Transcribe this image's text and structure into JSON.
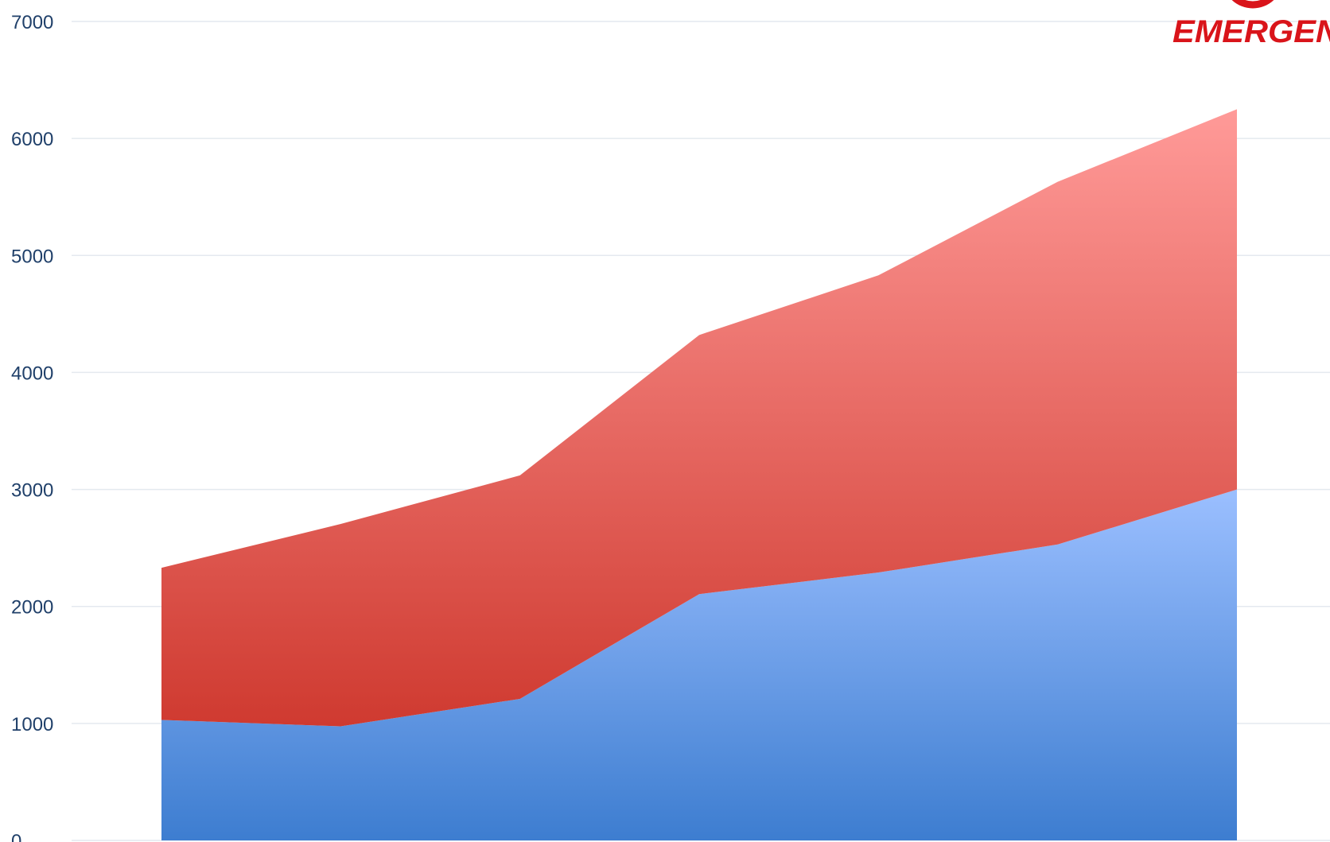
{
  "chart_data": {
    "type": "area",
    "stacked": true,
    "title": "",
    "xlabel": "",
    "ylabel": "",
    "ylim": [
      0,
      7000
    ],
    "yticks": [
      0,
      1000,
      2000,
      3000,
      4000,
      5000,
      6000,
      7000
    ],
    "grid": true,
    "x": [
      1,
      2,
      3,
      4,
      5,
      6,
      7
    ],
    "series": [
      {
        "values": [
          1030,
          975,
          1210,
          2105,
          2290,
          2530,
          3000
        ],
        "color_top": "#9bbfff",
        "color_bottom": "#3d7dd0"
      },
      {
        "values": [
          1300,
          1730,
          1910,
          2215,
          2540,
          3100,
          3250
        ],
        "color_top": "#ff9a98",
        "color_bottom": "#cf3a30"
      }
    ]
  },
  "logo": {
    "text": "EMERGEN",
    "color": "#d9141a"
  }
}
